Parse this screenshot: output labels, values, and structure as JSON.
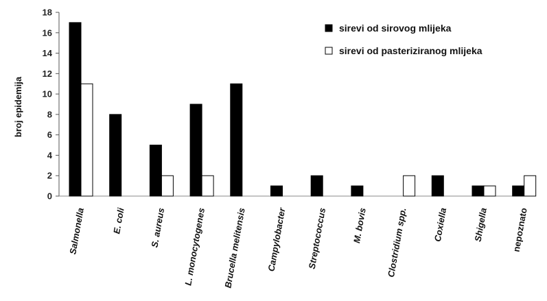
{
  "chart_data": {
    "type": "bar",
    "ylabel": "broj epidemija",
    "ylim": [
      0,
      18
    ],
    "yticks": [
      "0",
      "2",
      "4",
      "6",
      "8",
      "10",
      "12",
      "14",
      "16",
      "18"
    ],
    "categories": [
      "Salmonella",
      "E. coli",
      "S. aureus",
      "L. monocytogenes",
      "Brucella melitensis",
      "Campylobacter",
      "Streptococcus",
      "M. bovis",
      "Clostridium spp.",
      "Coxiella",
      "Shigella",
      "nepoznato"
    ],
    "italic_categories": [
      true,
      true,
      true,
      true,
      true,
      true,
      true,
      true,
      true,
      true,
      true,
      false
    ],
    "series": [
      {
        "name": "sirevi od sirovog mlijeka",
        "color": "#000000",
        "values": [
          17,
          8,
          5,
          9,
          11,
          1,
          2,
          1,
          0,
          2,
          1,
          1
        ]
      },
      {
        "name": "sirevi od pasteriziranog mlijeka",
        "color": "#ffffff",
        "values": [
          11,
          0,
          2,
          2,
          0,
          0,
          0,
          0,
          2,
          0,
          1,
          2
        ]
      }
    ],
    "legend": "top-right",
    "grid": false
  }
}
